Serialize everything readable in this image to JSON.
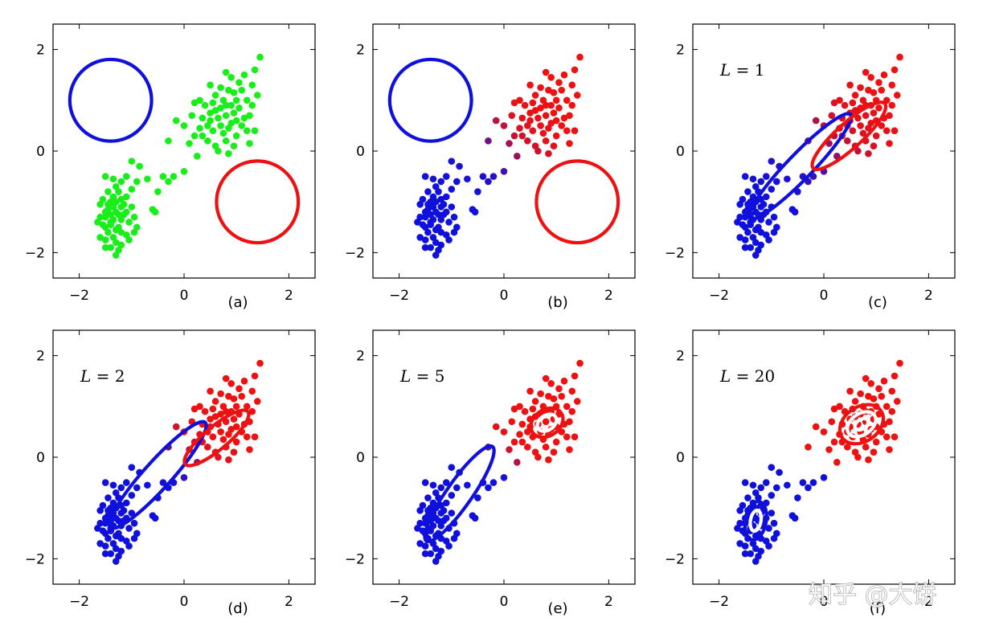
{
  "figure": {
    "watermark": "知乎 @大饼"
  },
  "colors": {
    "green": "#1aee1a",
    "blue": "#1010dd",
    "red": "#ee1111",
    "purple": "#7a1a9a",
    "white": "#ffffff",
    "axis": "#000000"
  },
  "chart_data": [
    {
      "type": "scatter",
      "panel_label": "(a)",
      "annotation": "",
      "xlim": [
        -2.5,
        2.5
      ],
      "ylim": [
        -2.5,
        2.5
      ],
      "xticks": [
        -2,
        0,
        2
      ],
      "yticks": [
        -2,
        0,
        2
      ],
      "tick_labels": [
        "−2",
        "0",
        "2"
      ],
      "point_color": "green",
      "grid": false,
      "ellipses": [
        {
          "color": "blue",
          "cx": -1.4,
          "cy": 1.0,
          "rx": 0.78,
          "ry": 0.78,
          "angle": 0
        },
        {
          "color": "red",
          "cx": 1.4,
          "cy": -1.0,
          "rx": 0.78,
          "ry": 0.78,
          "angle": 0
        }
      ]
    },
    {
      "type": "scatter",
      "panel_label": "(b)",
      "annotation": "",
      "xlim": [
        -2.5,
        2.5
      ],
      "ylim": [
        -2.5,
        2.5
      ],
      "xticks": [
        -2,
        0,
        2
      ],
      "yticks": [
        -2,
        0,
        2
      ],
      "tick_labels": [
        "−2",
        "0",
        "2"
      ],
      "point_color": "responsibility",
      "sharpness": 1.6,
      "grid": false,
      "ellipses": [
        {
          "color": "blue",
          "cx": -1.4,
          "cy": 1.0,
          "rx": 0.78,
          "ry": 0.78,
          "angle": 0
        },
        {
          "color": "red",
          "cx": 1.4,
          "cy": -1.0,
          "rx": 0.78,
          "ry": 0.78,
          "angle": 0
        }
      ]
    },
    {
      "type": "scatter",
      "panel_label": "(c)",
      "annotation": "L = 1",
      "annotation_var": "L",
      "annotation_rest": " = 1",
      "xlim": [
        -2.5,
        2.5
      ],
      "ylim": [
        -2.5,
        2.5
      ],
      "xticks": [
        -2,
        0,
        2
      ],
      "yticks": [
        -2,
        0,
        2
      ],
      "tick_labels": [
        "−2",
        "0",
        "2"
      ],
      "point_color": "responsibility",
      "sharpness": 1.2,
      "grid": false,
      "ellipses": [
        {
          "color": "blue",
          "cx": -0.45,
          "cy": -0.3,
          "rx": 1.38,
          "ry": 0.24,
          "angle": 46
        },
        {
          "color": "red",
          "cx": 0.48,
          "cy": 0.3,
          "rx": 0.92,
          "ry": 0.24,
          "angle": 42
        }
      ]
    },
    {
      "type": "scatter",
      "panel_label": "(d)",
      "annotation": "L = 2",
      "annotation_var": "L",
      "annotation_rest": " = 2",
      "xlim": [
        -2.5,
        2.5
      ],
      "ylim": [
        -2.5,
        2.5
      ],
      "xticks": [
        -2,
        0,
        2
      ],
      "yticks": [
        -2,
        0,
        2
      ],
      "tick_labels": [
        "−2",
        "0",
        "2"
      ],
      "point_color": "responsibility",
      "sharpness": 2.4,
      "grid": false,
      "ellipses": [
        {
          "color": "blue",
          "cx": -0.5,
          "cy": -0.35,
          "rx": 1.35,
          "ry": 0.26,
          "angle": 48
        },
        {
          "color": "red",
          "cx": 0.62,
          "cy": 0.38,
          "rx": 0.78,
          "ry": 0.22,
          "angle": 40
        }
      ]
    },
    {
      "type": "scatter",
      "panel_label": "(e)",
      "annotation": "L = 5",
      "annotation_var": "L",
      "annotation_rest": " = 5",
      "xlim": [
        -2.5,
        2.5
      ],
      "ylim": [
        -2.5,
        2.5
      ],
      "xticks": [
        -2,
        0,
        2
      ],
      "yticks": [
        -2,
        0,
        2
      ],
      "tick_labels": [
        "−2",
        "0",
        "2"
      ],
      "point_color": "responsibility",
      "sharpness": 4,
      "grid": false,
      "ellipses": [
        {
          "color": "blue",
          "cx": -0.85,
          "cy": -0.72,
          "rx": 1.1,
          "ry": 0.24,
          "angle": 55
        },
        {
          "color": "red",
          "cx": 0.82,
          "cy": 0.68,
          "rx": 0.33,
          "ry": 0.25,
          "angle": 35
        },
        {
          "color": "white",
          "cx": 0.82,
          "cy": 0.68,
          "rx": 0.2,
          "ry": 0.14,
          "angle": 35
        }
      ]
    },
    {
      "type": "scatter",
      "panel_label": "(f)",
      "annotation": "L = 20",
      "annotation_var": "L",
      "annotation_rest": " = 20",
      "xlim": [
        -2.5,
        2.5
      ],
      "ylim": [
        -2.5,
        2.5
      ],
      "xticks": [
        -2,
        0,
        2
      ],
      "yticks": [
        -2,
        0,
        2
      ],
      "tick_labels": [
        "−2",
        "0",
        "2"
      ],
      "point_color": "hard",
      "grid": false,
      "ellipses": [
        {
          "color": "blue",
          "cx": -1.3,
          "cy": -1.25,
          "rx": 0.37,
          "ry": 0.2,
          "angle": 80
        },
        {
          "color": "white",
          "cx": -1.3,
          "cy": -1.25,
          "rx": 0.2,
          "ry": 0.1,
          "angle": 80
        },
        {
          "color": "red",
          "cx": 0.72,
          "cy": 0.65,
          "rx": 0.45,
          "ry": 0.33,
          "angle": 35
        },
        {
          "color": "white",
          "cx": 0.72,
          "cy": 0.65,
          "rx": 0.3,
          "ry": 0.2,
          "angle": 35
        },
        {
          "color": "white",
          "cx": 0.72,
          "cy": 0.65,
          "rx": 0.14,
          "ry": 0.09,
          "angle": 35
        }
      ]
    }
  ],
  "points": [
    [
      -1.3,
      -0.7
    ],
    [
      -1.4,
      -1.0
    ],
    [
      -1.2,
      -1.1
    ],
    [
      -1.5,
      -1.2
    ],
    [
      -1.35,
      -1.35
    ],
    [
      -1.25,
      -1.5
    ],
    [
      -1.45,
      -1.6
    ],
    [
      -1.3,
      -1.8
    ],
    [
      -1.55,
      -0.95
    ],
    [
      -1.1,
      -0.9
    ],
    [
      -1.2,
      -0.6
    ],
    [
      -1.4,
      -1.4
    ],
    [
      -1.5,
      -1.5
    ],
    [
      -1.6,
      -1.3
    ],
    [
      -1.15,
      -1.25
    ],
    [
      -1.05,
      -1.4
    ],
    [
      -1.3,
      -1.2
    ],
    [
      -1.45,
      -1.15
    ],
    [
      -1.2,
      -1.6
    ],
    [
      -1.35,
      -1.7
    ],
    [
      -1.4,
      -1.9
    ],
    [
      -1.2,
      -1.85
    ],
    [
      -1.5,
      -1.75
    ],
    [
      -1.1,
      -1.65
    ],
    [
      -1.0,
      -1.1
    ],
    [
      -1.25,
      -0.8
    ],
    [
      -1.45,
      -0.8
    ],
    [
      -1.6,
      -1.05
    ],
    [
      -1.3,
      -1.0
    ],
    [
      -1.15,
      -1.05
    ],
    [
      -1.35,
      -0.55
    ],
    [
      -1.5,
      -0.5
    ],
    [
      -1.0,
      -0.75
    ],
    [
      -0.9,
      -0.6
    ],
    [
      -1.1,
      -0.5
    ],
    [
      -1.3,
      -1.55
    ],
    [
      -1.55,
      -1.45
    ],
    [
      -1.65,
      -1.4
    ],
    [
      -1.25,
      -1.95
    ],
    [
      -1.3,
      -2.05
    ],
    [
      -1.4,
      -1.25
    ],
    [
      -1.2,
      -1.35
    ],
    [
      -1.1,
      -1.2
    ],
    [
      -1.45,
      -1.05
    ],
    [
      -1.35,
      -0.9
    ],
    [
      -1.2,
      -0.95
    ],
    [
      -0.95,
      -1.3
    ],
    [
      -0.9,
      -1.5
    ],
    [
      -0.95,
      -1.6
    ],
    [
      -1.05,
      -1.75
    ],
    [
      -1.5,
      -1.9
    ],
    [
      -1.6,
      -1.7
    ],
    [
      -1.4,
      -1.45
    ],
    [
      -1.25,
      -1.25
    ],
    [
      -1.35,
      -1.1
    ],
    [
      -1.5,
      -1.3
    ],
    [
      -0.85,
      -0.3
    ],
    [
      -0.7,
      -0.55
    ],
    [
      -0.5,
      -0.8
    ],
    [
      -0.55,
      -1.2
    ],
    [
      -0.6,
      -1.15
    ],
    [
      -1.0,
      -0.2
    ],
    [
      -0.4,
      -0.5
    ],
    [
      -0.3,
      -0.6
    ],
    [
      0.0,
      -0.4
    ],
    [
      -0.2,
      -0.5
    ],
    [
      0.1,
      0.15
    ],
    [
      -0.15,
      0.6
    ],
    [
      0.0,
      0.5
    ],
    [
      0.2,
      0.3
    ],
    [
      -0.3,
      0.2
    ],
    [
      0.25,
      -0.1
    ],
    [
      0.5,
      0.6
    ],
    [
      0.6,
      0.8
    ],
    [
      0.7,
      0.5
    ],
    [
      0.8,
      0.7
    ],
    [
      0.9,
      0.9
    ],
    [
      1.0,
      0.6
    ],
    [
      0.75,
      1.0
    ],
    [
      0.65,
      0.65
    ],
    [
      0.55,
      0.4
    ],
    [
      0.85,
      0.45
    ],
    [
      0.95,
      0.75
    ],
    [
      1.05,
      0.85
    ],
    [
      1.1,
      0.5
    ],
    [
      0.6,
      1.1
    ],
    [
      0.7,
      1.25
    ],
    [
      0.85,
      1.2
    ],
    [
      0.4,
      0.9
    ],
    [
      0.35,
      0.65
    ],
    [
      0.3,
      1.0
    ],
    [
      0.5,
      1.3
    ],
    [
      0.8,
      1.55
    ],
    [
      0.9,
      1.45
    ],
    [
      1.1,
      1.2
    ],
    [
      1.2,
      1.0
    ],
    [
      1.25,
      0.7
    ],
    [
      1.2,
      0.4
    ],
    [
      1.0,
      0.3
    ],
    [
      0.8,
      0.2
    ],
    [
      0.6,
      0.1
    ],
    [
      0.45,
      0.2
    ],
    [
      1.3,
      1.3
    ],
    [
      1.35,
      1.6
    ],
    [
      1.45,
      1.85
    ],
    [
      1.15,
      1.5
    ],
    [
      0.95,
      1.15
    ],
    [
      0.7,
      0.85
    ],
    [
      0.55,
      0.95
    ],
    [
      0.45,
      0.5
    ],
    [
      0.35,
      0.3
    ],
    [
      1.3,
      0.9
    ],
    [
      1.35,
      0.4
    ],
    [
      1.0,
      1.0
    ],
    [
      0.9,
      0.55
    ],
    [
      0.75,
      0.35
    ],
    [
      0.65,
      0.0
    ],
    [
      0.85,
      -0.05
    ],
    [
      0.5,
      0.75
    ],
    [
      0.8,
      0.9
    ],
    [
      1.15,
      0.65
    ],
    [
      1.05,
      1.35
    ],
    [
      0.2,
      0.95
    ],
    [
      0.15,
      0.7
    ],
    [
      0.3,
      0.45
    ],
    [
      1.4,
      1.1
    ],
    [
      1.25,
      0.15
    ],
    [
      0.95,
      0.1
    ]
  ]
}
